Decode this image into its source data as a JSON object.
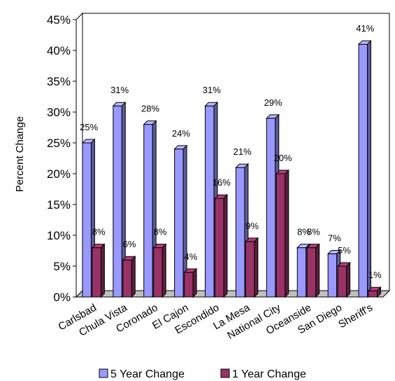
{
  "chart_data": {
    "type": "bar",
    "style": "3d-clustered-column",
    "ylabel": "Percent Change",
    "xlabel": "",
    "ylim": [
      0,
      45
    ],
    "yticks": [
      "0%",
      "5%",
      "10%",
      "15%",
      "20%",
      "25%",
      "30%",
      "35%",
      "40%",
      "45%"
    ],
    "categories": [
      "Carlsbad",
      "Chula Vista",
      "Coronado",
      "El Cajon",
      "Escondido",
      "La Mesa",
      "National City",
      "Oceanside",
      "San Diego",
      "Sheriff's"
    ],
    "series": [
      {
        "name": "5 Year Change",
        "color": "#9999FF",
        "values": [
          25,
          31,
          28,
          24,
          31,
          21,
          29,
          8,
          7,
          41
        ],
        "labels": [
          "25%",
          "31%",
          "28%",
          "24%",
          "31%",
          "21%",
          "29%",
          "8%",
          "7%",
          "41%"
        ]
      },
      {
        "name": "1 Year Change",
        "color": "#993366",
        "values": [
          8,
          6,
          8,
          4,
          16,
          9,
          20,
          8,
          5,
          1
        ],
        "labels": [
          "8%",
          "6%",
          "8%",
          "4%",
          "16%",
          "9%",
          "20%",
          "8%",
          "5%",
          "1%"
        ]
      }
    ],
    "legend": "bottom",
    "grid": false
  }
}
